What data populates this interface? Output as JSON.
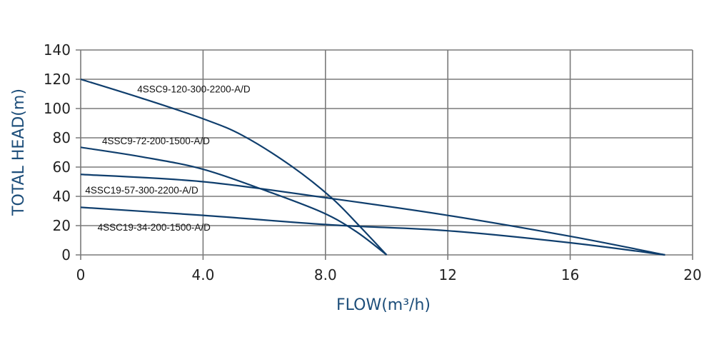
{
  "chart_data": {
    "type": "line",
    "title": "",
    "xlabel": "FLOW(m³/h)",
    "ylabel": "TOTAL HEAD(m)",
    "xlim": [
      0,
      20
    ],
    "ylim": [
      0,
      140
    ],
    "grid": true,
    "x_ticks": [
      0,
      4,
      8,
      12,
      16,
      20
    ],
    "x_tick_labels": [
      "0",
      "4.0",
      "8.0",
      "12",
      "16",
      "20"
    ],
    "y_ticks": [
      0,
      20,
      40,
      60,
      80,
      100,
      120,
      140
    ],
    "y_tick_labels": [
      "0",
      "20",
      "40",
      "60",
      "80",
      "100",
      "120",
      "140"
    ],
    "line_color": "#0f3e6d",
    "series": [
      {
        "name": "4SSC9-120-300-2200-A/D",
        "label_at": [
          1.85,
          111
        ],
        "x": [
          0,
          2,
          4,
          5.3,
          6.9,
          8.2,
          9.1,
          10.0
        ],
        "y": [
          120,
          107,
          93,
          81.5,
          60.5,
          39,
          20,
          0
        ]
      },
      {
        "name": "4SSC9-72-200-1500-A/D",
        "label_at": [
          0.7,
          75.5
        ],
        "x": [
          0,
          2,
          4,
          6.1,
          7.9,
          9.0,
          10.0
        ],
        "y": [
          73.5,
          67,
          58.5,
          43.5,
          29,
          16,
          0
        ]
      },
      {
        "name": "4SSC19-57-300-2200-A/D",
        "label_at": [
          0.15,
          42
        ],
        "x": [
          0,
          4,
          8.2,
          12,
          16,
          19.1
        ],
        "y": [
          55,
          50,
          38.5,
          27,
          12.7,
          0
        ]
      },
      {
        "name": "4SSC19-34-200-1500-A/D",
        "label_at": [
          0.55,
          16.5
        ],
        "x": [
          0,
          4,
          8.2,
          12,
          16,
          19.1
        ],
        "y": [
          32.5,
          27,
          20.5,
          16.5,
          8.3,
          0
        ]
      }
    ]
  }
}
